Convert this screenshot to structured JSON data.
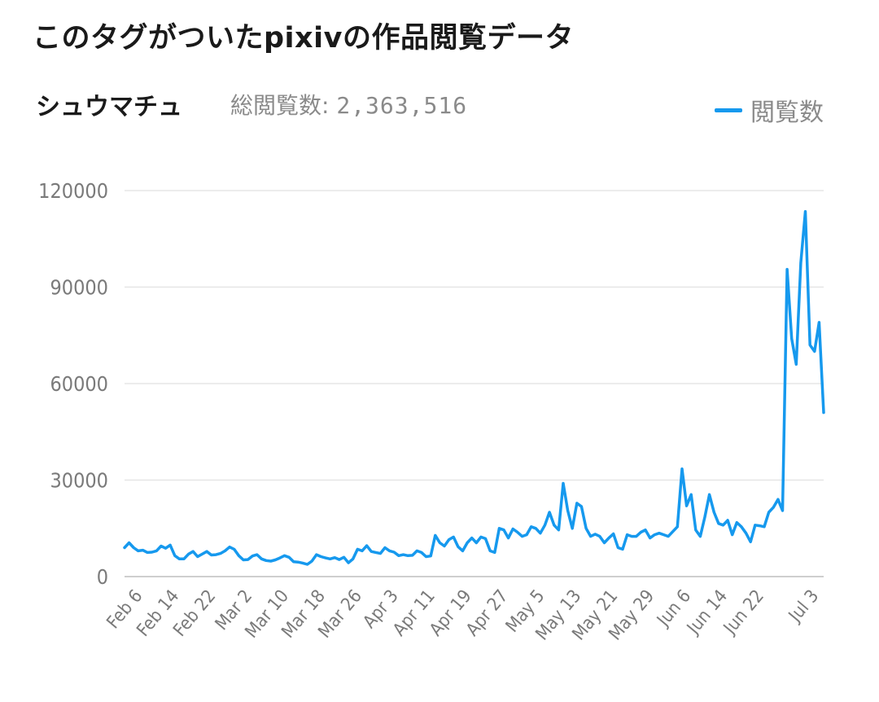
{
  "header": {
    "title": "このタグがついたpixivの作品閲覧データ"
  },
  "summary": {
    "tag_name": "シュウマチュ",
    "total_label": "総閲覧数:",
    "total_value": "2,363,516"
  },
  "legend": {
    "label": "閲覧数",
    "placement": "top-right"
  },
  "colors": {
    "series": "#1699ee",
    "grid": "#e6e6e6",
    "axis": "#cfcfcf"
  },
  "chart_data": {
    "type": "line",
    "xlabel": "",
    "ylabel": "",
    "ylim": [
      0,
      120000
    ],
    "yticks": [
      "0",
      "30000",
      "60000",
      "90000",
      "120000"
    ],
    "xticks": [
      "Feb 6",
      "Feb 14",
      "Feb 22",
      "Mar 2",
      "Mar 10",
      "Mar 18",
      "Mar 26",
      "Apr 3",
      "Apr 11",
      "Apr 19",
      "Apr 27",
      "May 5",
      "May 13",
      "May 21",
      "May 29",
      "Jun 6",
      "Jun 14",
      "Jun 22",
      "Jul 3"
    ],
    "grid": true,
    "series": [
      {
        "name": "閲覧数",
        "values": [
          9000,
          10500,
          9000,
          8000,
          8200,
          7500,
          7600,
          8000,
          9500,
          8800,
          9800,
          6500,
          5500,
          5500,
          7000,
          7800,
          6200,
          7000,
          7800,
          6700,
          6800,
          7200,
          8000,
          9200,
          8500,
          6500,
          5200,
          5300,
          6400,
          6800,
          5500,
          5000,
          4800,
          5200,
          5800,
          6500,
          6000,
          4600,
          4500,
          4200,
          3800,
          4800,
          6800,
          6200,
          5800,
          5500,
          5900,
          5300,
          6000,
          4300,
          5500,
          8500,
          8000,
          9600,
          7800,
          7500,
          7200,
          9000,
          8000,
          7600,
          6500,
          6800,
          6500,
          6600,
          8000,
          7500,
          6200,
          6400,
          12800,
          10500,
          9500,
          11500,
          12300,
          9300,
          8000,
          10500,
          12000,
          10500,
          12300,
          11800,
          8000,
          7500,
          15000,
          14500,
          12000,
          14800,
          13800,
          12500,
          13000,
          15500,
          15000,
          13500,
          16000,
          20000,
          16000,
          14500,
          29000,
          20500,
          15000,
          22800,
          21800,
          15000,
          12500,
          13200,
          12500,
          10500,
          12000,
          13300,
          9000,
          8500,
          13000,
          12500,
          12500,
          13800,
          14500,
          12000,
          13000,
          13500,
          13000,
          12500,
          14000,
          15500,
          33500,
          22000,
          25500,
          14500,
          12500,
          18500,
          25500,
          20000,
          16500,
          16000,
          17500,
          13000,
          16800,
          15500,
          13500,
          10800,
          16000,
          15800,
          15500,
          20000,
          21500,
          24000,
          20500,
          95500,
          74000,
          66000,
          97500,
          113500,
          72000,
          70000,
          79000,
          51000
        ]
      }
    ]
  }
}
